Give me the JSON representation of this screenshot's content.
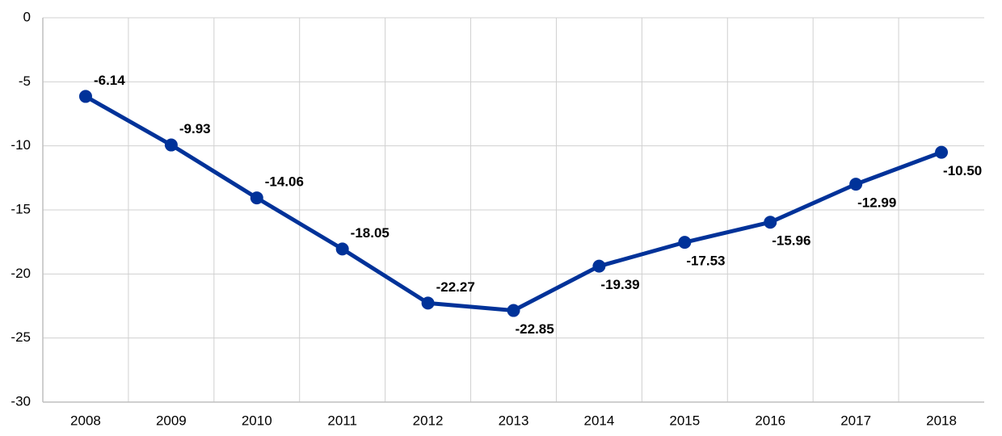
{
  "chart_data": {
    "type": "line",
    "categories": [
      "2008",
      "2009",
      "2010",
      "2011",
      "2012",
      "2013",
      "2014",
      "2015",
      "2016",
      "2017",
      "2018"
    ],
    "values": [
      -6.14,
      -9.93,
      -14.06,
      -18.05,
      -22.27,
      -22.85,
      -19.39,
      -17.53,
      -15.96,
      -12.99,
      -10.5
    ],
    "value_labels": [
      "-6.14",
      "-9.93",
      "-14.06",
      "-18.05",
      "-22.27",
      "-22.85",
      "-19.39",
      "-17.53",
      "-15.96",
      "-12.99",
      "-10.50"
    ],
    "color": "#003299",
    "ylim": [
      -30,
      0
    ],
    "yticks": [
      0,
      -5,
      -10,
      -15,
      -20,
      -25,
      -30
    ],
    "grid": true
  }
}
